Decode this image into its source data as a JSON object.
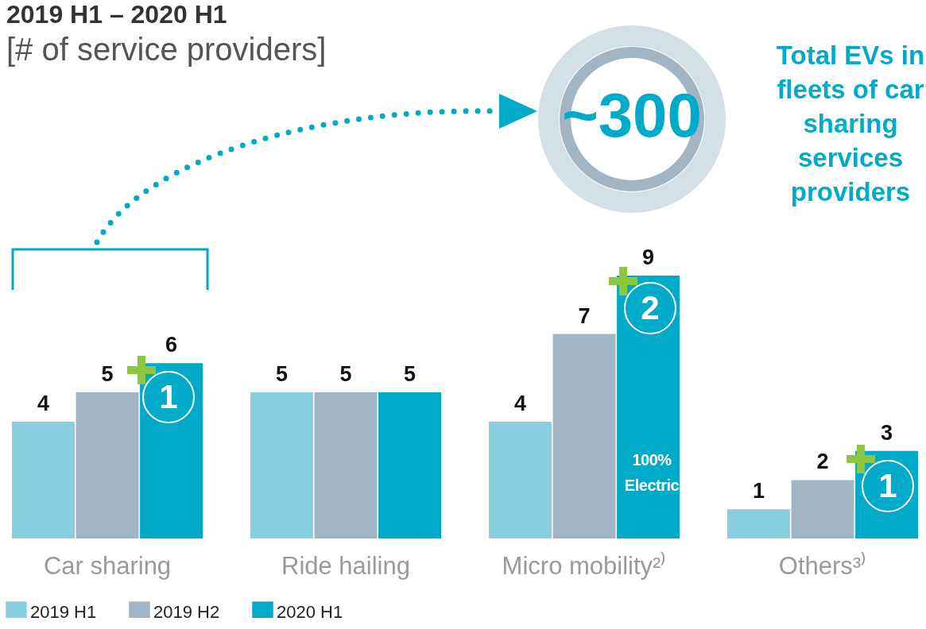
{
  "chart_data": {
    "type": "bar",
    "title": "2019 H1 – 2020 H1",
    "subtitle": "[# of service providers]",
    "categories": [
      "Car sharing",
      "Ride hailing",
      "Micro mobility²⁾",
      "Others³⁾"
    ],
    "series": [
      {
        "name": "2019 H1",
        "color": "#87cede",
        "values": [
          4,
          5,
          4,
          1
        ]
      },
      {
        "name": "2019 H2",
        "color": "#a2b5c4",
        "values": [
          5,
          5,
          7,
          2
        ]
      },
      {
        "name": "2020 H1",
        "color": "#00aac8",
        "values": [
          6,
          5,
          9,
          3
        ]
      }
    ],
    "data_labels": true,
    "legend": "bottom left",
    "annotations": [
      "~300",
      "Total EVs in fleets of car sharing services providers",
      "1",
      "2",
      "100% Electric",
      "1"
    ]
  }
}
